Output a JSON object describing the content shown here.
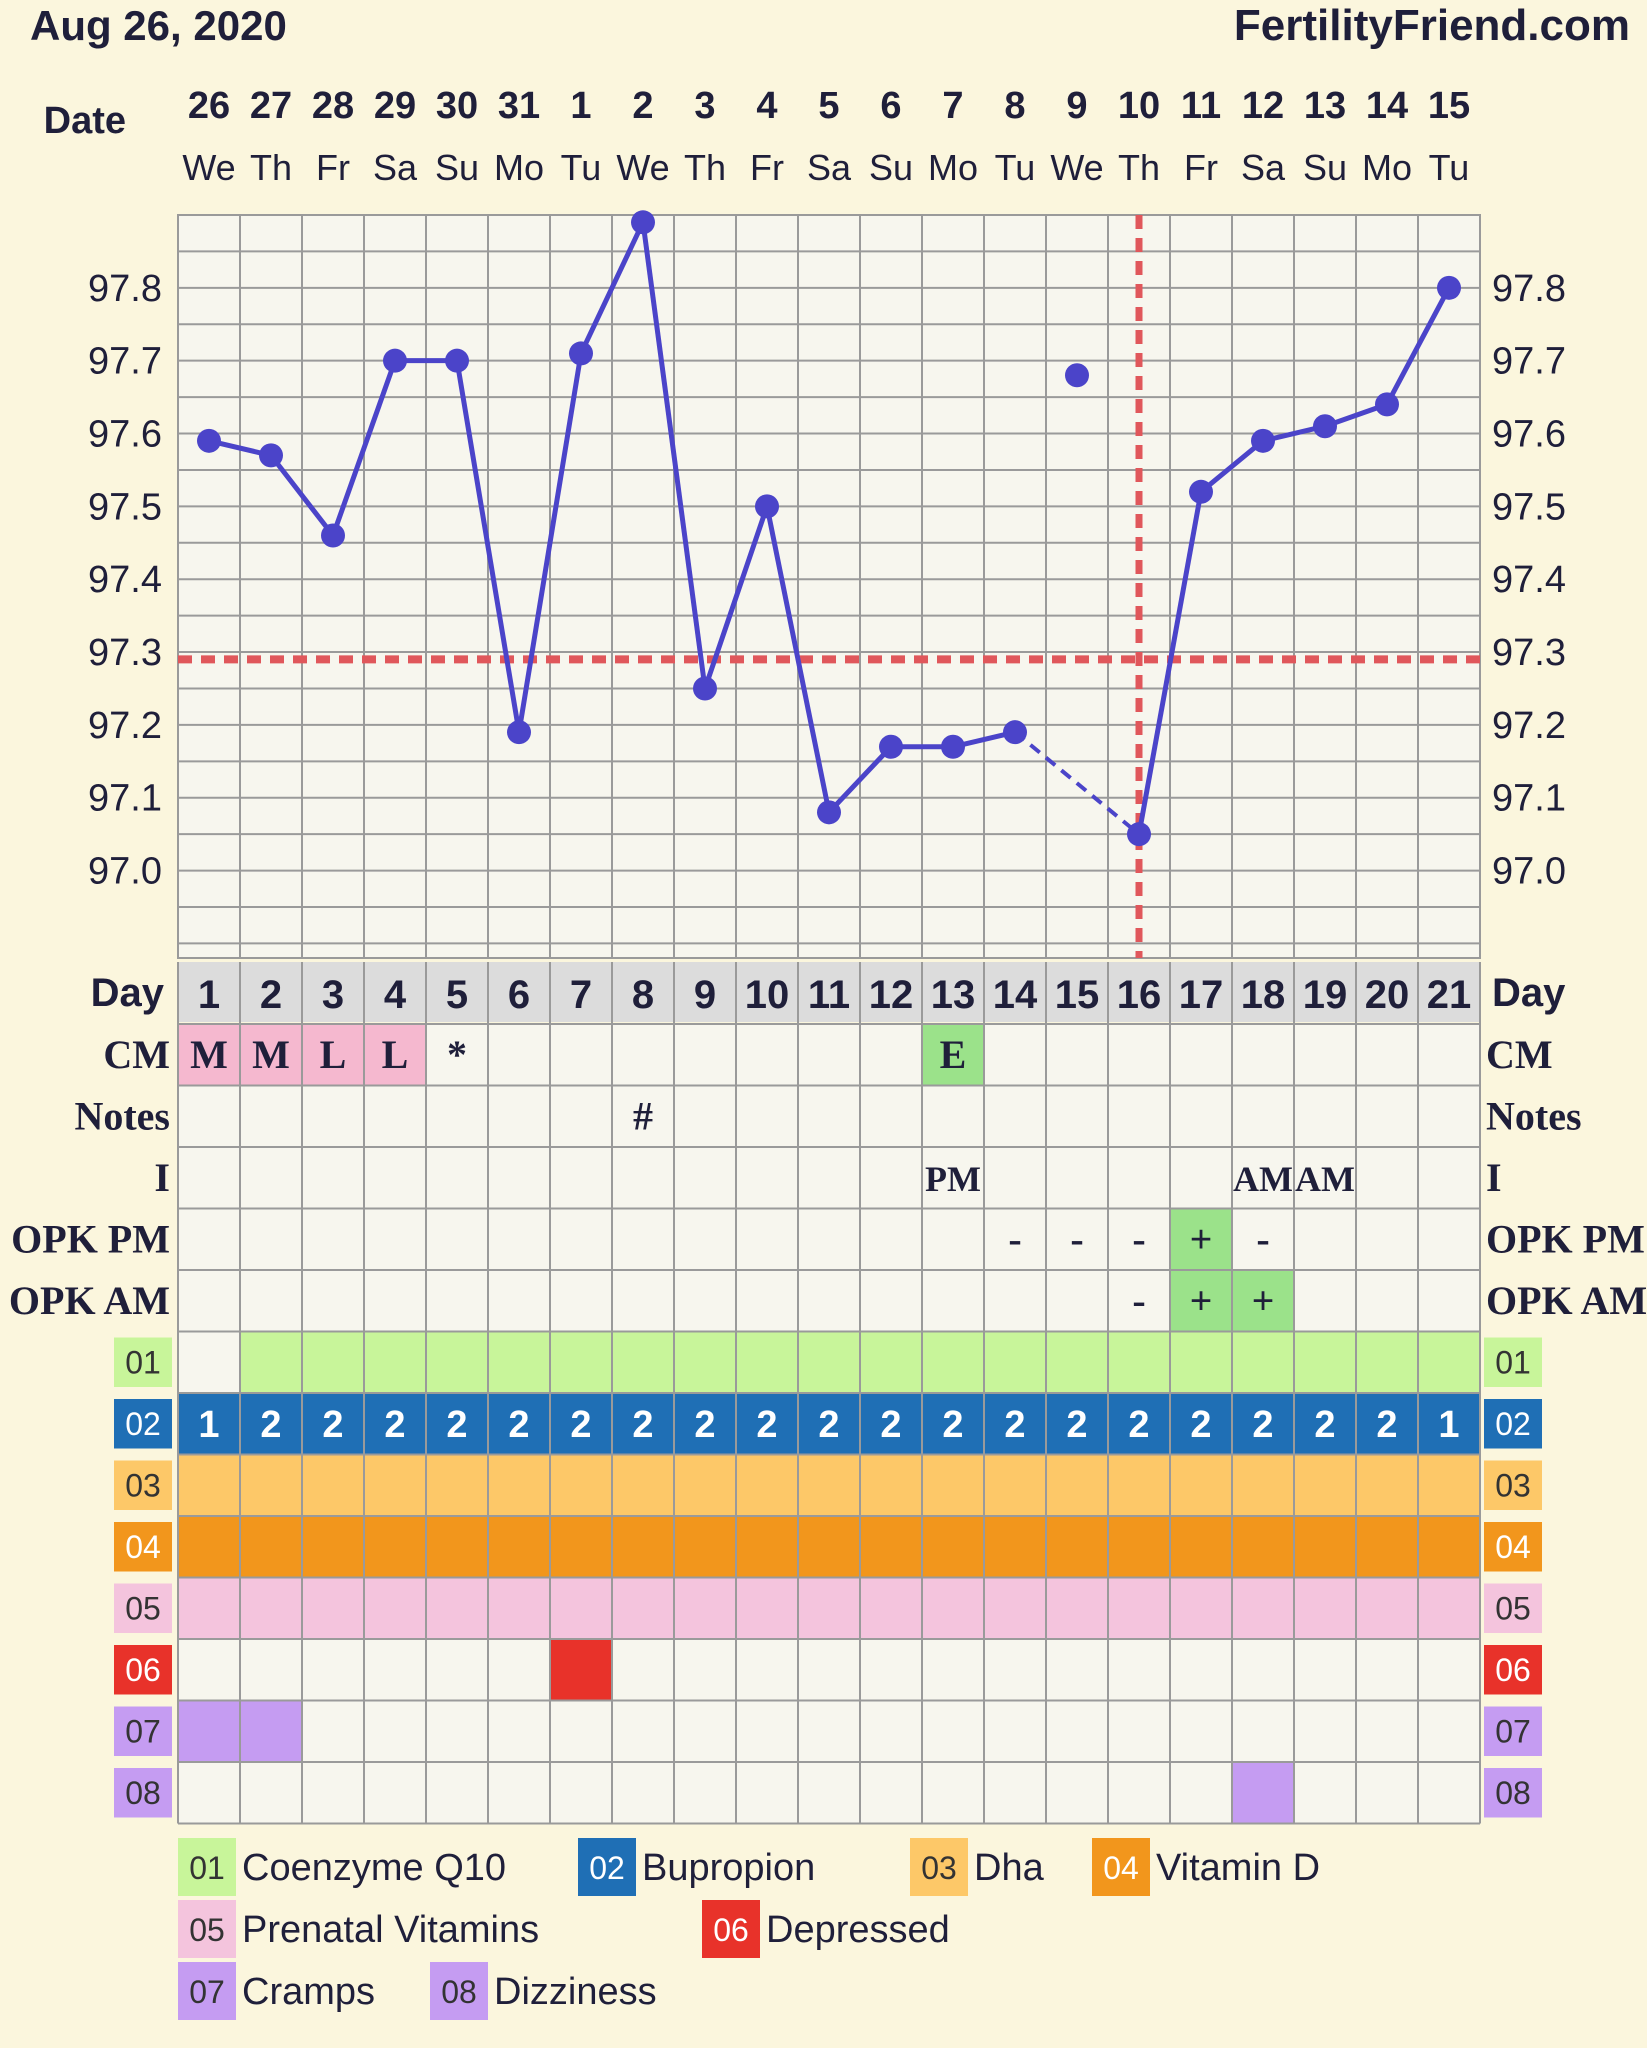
{
  "header": {
    "date": "Aug 26, 2020",
    "site": "FertilityFriend.com"
  },
  "labels": {
    "date": "Date",
    "day": "Day",
    "cm": "CM",
    "notes": "Notes",
    "intercourse": "I",
    "opk_pm": "OPK PM",
    "opk_am": "OPK AM"
  },
  "colors": {
    "background": "#fbf6dd",
    "grid_bg": "#f7f6ee",
    "temp_line": "#4b44c9",
    "coverline": "#e0575b",
    "cm_pink": "#f5b8cf",
    "fertile_green": "#9be28a",
    "day_row": "#dcdcdc"
  },
  "chart_data": {
    "type": "line",
    "x": [
      "26",
      "27",
      "28",
      "29",
      "30",
      "31",
      "1",
      "2",
      "3",
      "4",
      "5",
      "6",
      "7",
      "8",
      "9",
      "10",
      "11",
      "12",
      "13",
      "14",
      "15"
    ],
    "weekdays": [
      "We",
      "Th",
      "Fr",
      "Sa",
      "Su",
      "Mo",
      "Tu",
      "We",
      "Th",
      "Fr",
      "Sa",
      "Su",
      "Mo",
      "Tu",
      "We",
      "Th",
      "Fr",
      "Sa",
      "Su",
      "Mo",
      "Tu"
    ],
    "cycle_days": [
      "1",
      "2",
      "3",
      "4",
      "5",
      "6",
      "7",
      "8",
      "9",
      "10",
      "11",
      "12",
      "13",
      "14",
      "15",
      "16",
      "17",
      "18",
      "19",
      "20",
      "21"
    ],
    "series": [
      {
        "values": [
          97.59,
          97.57,
          97.46,
          97.7,
          97.7,
          97.19,
          97.71,
          97.89,
          97.25,
          97.5,
          97.08,
          97.17,
          97.17,
          97.19,
          97.68,
          97.05,
          97.52,
          97.59,
          97.61,
          97.64,
          97.8
        ]
      }
    ],
    "discarded_days": [
      15
    ],
    "dashed_segments": [
      [
        14,
        16
      ]
    ],
    "coverline": 97.29,
    "ovulation_day": 16,
    "ylim": [
      96.88,
      97.9
    ],
    "yticks": [
      {
        "v": 97.0,
        "label": "97.0"
      },
      {
        "v": 97.1,
        "label": "97.1"
      },
      {
        "v": 97.2,
        "label": "97.2"
      },
      {
        "v": 97.3,
        "label": "97.3"
      },
      {
        "v": 97.4,
        "label": "97.4"
      },
      {
        "v": 97.5,
        "label": "97.5"
      },
      {
        "v": 97.6,
        "label": "97.6"
      },
      {
        "v": 97.7,
        "label": "97.7"
      },
      {
        "v": 97.8,
        "label": "97.8"
      }
    ],
    "grid": true
  },
  "rows": {
    "cm": [
      {
        "day": 1,
        "text": "M",
        "bg": "#f5b8cf"
      },
      {
        "day": 2,
        "text": "M",
        "bg": "#f5b8cf"
      },
      {
        "day": 3,
        "text": "L",
        "bg": "#f5b8cf"
      },
      {
        "day": 4,
        "text": "L",
        "bg": "#f5b8cf"
      },
      {
        "day": 5,
        "text": "*"
      },
      {
        "day": 13,
        "text": "E",
        "bg": "#9be28a"
      }
    ],
    "notes": [
      {
        "day": 8,
        "text": "#"
      }
    ],
    "intercourse": [
      {
        "day": 13,
        "text": "PM"
      },
      {
        "day": 18,
        "text": "AM"
      },
      {
        "day": 19,
        "text": "AM"
      }
    ],
    "opk_pm": [
      {
        "day": 14,
        "text": "-"
      },
      {
        "day": 15,
        "text": "-"
      },
      {
        "day": 16,
        "text": "-"
      },
      {
        "day": 17,
        "text": "+",
        "bg": "#9be28a"
      },
      {
        "day": 18,
        "text": "-"
      }
    ],
    "opk_am": [
      {
        "day": 16,
        "text": "-"
      },
      {
        "day": 17,
        "text": "+",
        "bg": "#9be28a"
      },
      {
        "day": 18,
        "text": "+",
        "bg": "#9be28a"
      }
    ]
  },
  "tracks": [
    {
      "code": "01",
      "name": "Coenzyme Q10",
      "color": "#c8f59a",
      "text_color": "#333333",
      "days": [
        2,
        3,
        4,
        5,
        6,
        7,
        8,
        9,
        10,
        11,
        12,
        13,
        14,
        15,
        16,
        17,
        18,
        19,
        20,
        21
      ]
    },
    {
      "code": "02",
      "name": "Bupropion",
      "color": "#1f6fb5",
      "text_color": "#ffffff",
      "days": [
        1,
        2,
        3,
        4,
        5,
        6,
        7,
        8,
        9,
        10,
        11,
        12,
        13,
        14,
        15,
        16,
        17,
        18,
        19,
        20,
        21
      ],
      "cell_text": [
        "1",
        "2",
        "2",
        "2",
        "2",
        "2",
        "2",
        "2",
        "2",
        "2",
        "2",
        "2",
        "2",
        "2",
        "2",
        "2",
        "2",
        "2",
        "2",
        "2",
        "1"
      ]
    },
    {
      "code": "03",
      "name": "Dha",
      "color": "#fdc868",
      "text_color": "#333333",
      "days": [
        1,
        2,
        3,
        4,
        5,
        6,
        7,
        8,
        9,
        10,
        11,
        12,
        13,
        14,
        15,
        16,
        17,
        18,
        19,
        20,
        21
      ]
    },
    {
      "code": "04",
      "name": "Vitamin D",
      "color": "#f2961c",
      "text_color": "#ffffff",
      "days": [
        1,
        2,
        3,
        4,
        5,
        6,
        7,
        8,
        9,
        10,
        11,
        12,
        13,
        14,
        15,
        16,
        17,
        18,
        19,
        20,
        21
      ]
    },
    {
      "code": "05",
      "name": "Prenatal Vitamins",
      "color": "#f4c4dd",
      "text_color": "#333333",
      "days": [
        1,
        2,
        3,
        4,
        5,
        6,
        7,
        8,
        9,
        10,
        11,
        12,
        13,
        14,
        15,
        16,
        17,
        18,
        19,
        20,
        21
      ]
    },
    {
      "code": "06",
      "name": "Depressed",
      "color": "#e8322a",
      "text_color": "#ffffff",
      "days": [
        7
      ]
    },
    {
      "code": "07",
      "name": "Cramps",
      "color": "#c59cf2",
      "text_color": "#333333",
      "days": [
        1,
        2
      ]
    },
    {
      "code": "08",
      "name": "Dizziness",
      "color": "#c59cf2",
      "text_color": "#333333",
      "days": [
        18
      ]
    }
  ]
}
